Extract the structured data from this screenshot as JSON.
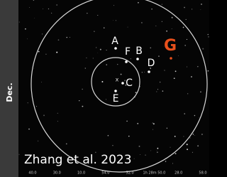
{
  "axis_label": "Dec.",
  "credit": "Zhang et al. 2023",
  "center_marker": "x",
  "markers": [
    {
      "label": "A",
      "color": "#ffffff"
    },
    {
      "label": "F",
      "color": "#ffffff"
    },
    {
      "label": "B",
      "color": "#ffffff"
    },
    {
      "label": "G",
      "color": "#e8501c"
    },
    {
      "label": "D",
      "color": "#ffffff"
    },
    {
      "label": "C",
      "color": "#ffffff"
    },
    {
      "label": "E",
      "color": "#ffffff"
    }
  ],
  "x_tick_labels": [
    "40.0",
    "30.0",
    "10.0",
    "54.0",
    "52.0",
    "1h 28m 50.0",
    "28.0",
    "58.0"
  ]
}
